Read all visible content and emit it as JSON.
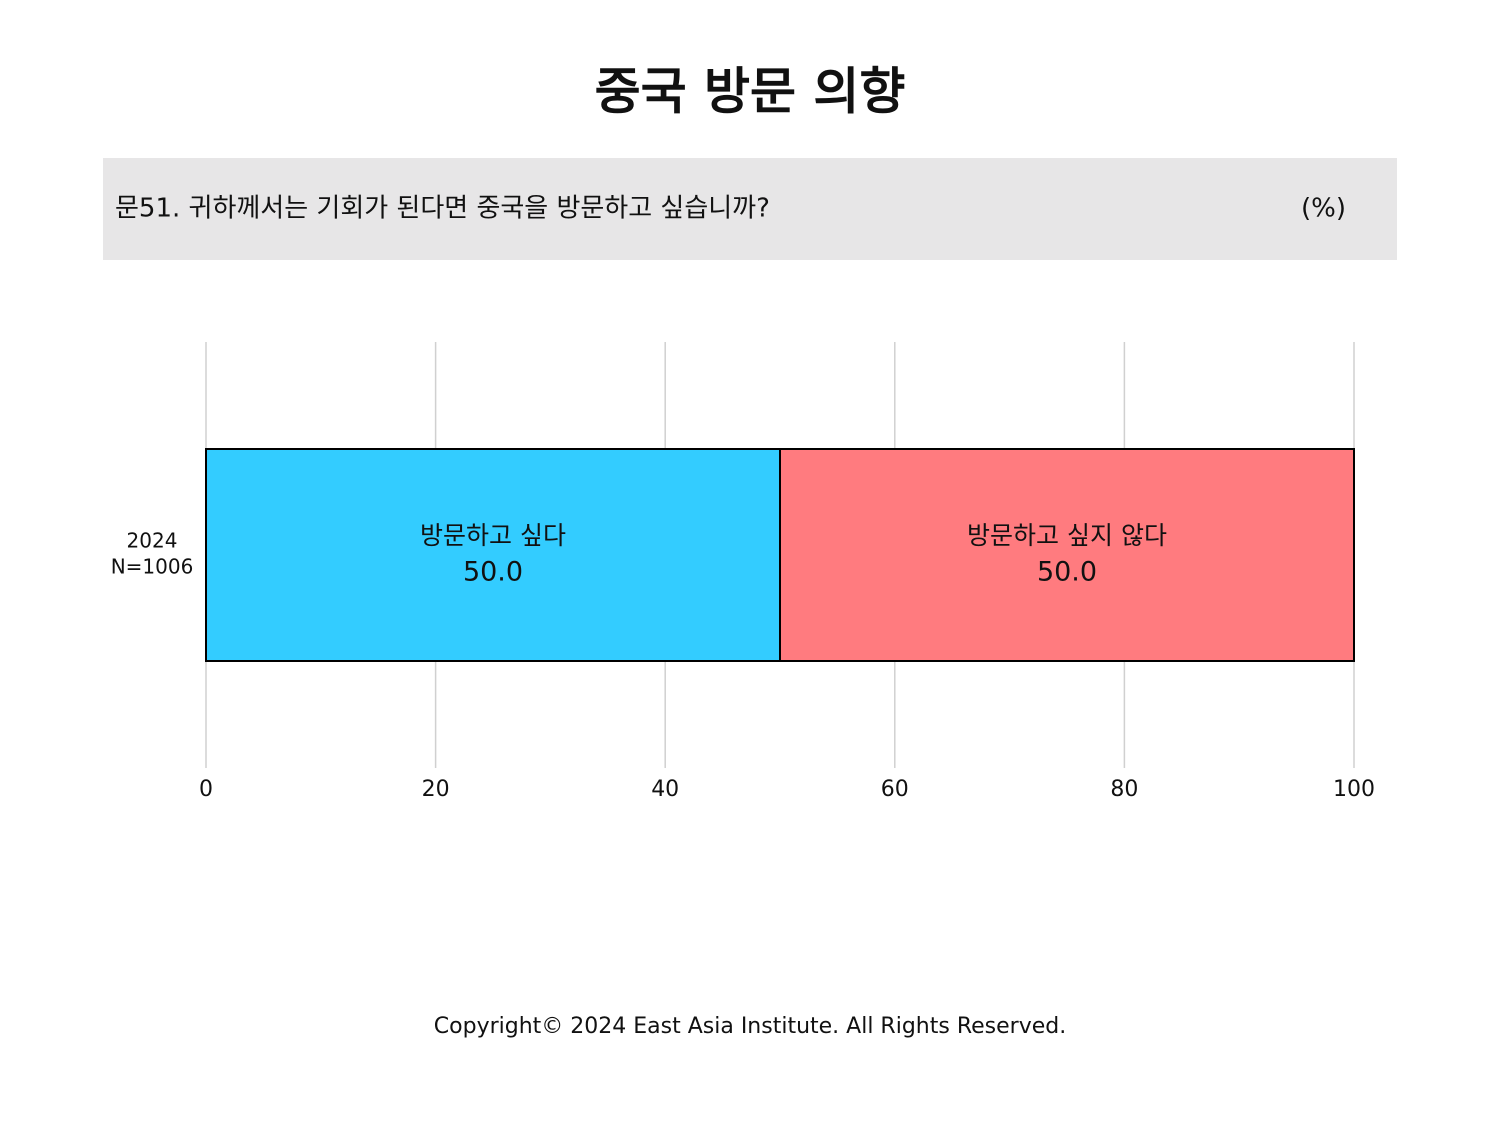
{
  "chart_data": {
    "type": "stacked-bar-horizontal",
    "title": "중국 방문 의향",
    "question": "문51. 귀하께서는 기회가 된다면 중국을 방문하고 싶습니까?",
    "unit": "(%)",
    "categories": [
      "2024"
    ],
    "category_notes": [
      "N=1006"
    ],
    "series": [
      {
        "name": "방문하고 싶다",
        "color": "#33ccff",
        "values": [
          50.0
        ],
        "value_labels": [
          "50.0"
        ]
      },
      {
        "name": "방문하고 싶지 않다",
        "color": "#ff7b7f",
        "values": [
          50.0
        ],
        "value_labels": [
          "50.0"
        ]
      }
    ],
    "xlim": [
      0,
      100
    ],
    "xticks": [
      0,
      20,
      40,
      60,
      80,
      100
    ],
    "grid": true,
    "footer": "Copyright© 2024 East Asia Institute. All Rights Reserved."
  }
}
